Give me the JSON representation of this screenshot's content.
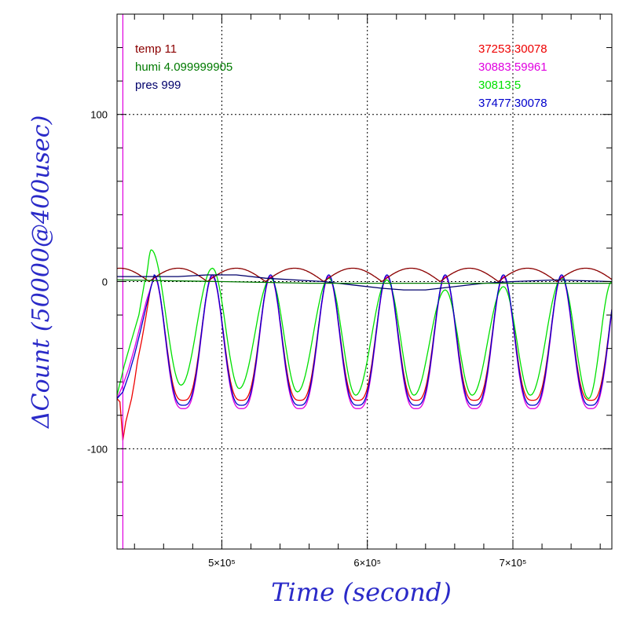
{
  "chart_data": {
    "type": "line",
    "xlabel": "Time (second)",
    "ylabel": "ΔCount (50000@400usec)",
    "xlim": [
      428000,
      768000
    ],
    "ylim": [
      -160,
      160
    ],
    "x_tick_values": [
      500000,
      600000,
      700000
    ],
    "x_tick_labels": [
      "5×10⁵",
      "6×10⁵",
      "7×10⁵"
    ],
    "y_tick_values": [
      100,
      0,
      -100
    ],
    "y_tick_labels": [
      "100",
      "0",
      "-100"
    ],
    "grid": true,
    "legend_left": [
      {
        "label": "temp 11",
        "color": "#8b0000"
      },
      {
        "label": "humi 4.099999905",
        "color": "#007a00"
      },
      {
        "label": "pres 999",
        "color": "#00006b"
      }
    ],
    "legend_right": [
      {
        "label": "37253.30078",
        "color": "#ee0000"
      },
      {
        "label": "30883.59961",
        "color": "#e000e0"
      },
      {
        "label": "30813.5",
        "color": "#00e000"
      },
      {
        "label": "37477.30078",
        "color": "#0000cc"
      }
    ],
    "series": [
      {
        "name": "37253.30078",
        "color": "#ee0000",
        "oscillation": {
          "peak": 3,
          "trough": -71,
          "period": 40000,
          "first_peak_x": 453500
        },
        "start": [
          [
            428000,
            -70
          ],
          [
            430000,
            -72
          ],
          [
            432000,
            -95
          ],
          [
            434000,
            -84
          ],
          [
            436000,
            -77
          ],
          [
            438000,
            -70
          ],
          [
            440000,
            -60
          ],
          [
            442000,
            -48
          ],
          [
            445000,
            -35
          ],
          [
            448000,
            -20
          ],
          [
            451000,
            -4
          ]
        ]
      },
      {
        "name": "30883.59961",
        "color": "#e000e0",
        "oscillation": {
          "peak": 3,
          "trough": -76,
          "period": 40000,
          "first_peak_x": 453500
        },
        "start": [
          [
            428000,
            -70
          ],
          [
            432000,
            -62
          ],
          [
            436000,
            -52
          ],
          [
            440000,
            -40
          ],
          [
            444000,
            -26
          ],
          [
            448000,
            -12
          ]
        ],
        "spike_x": 432000,
        "spike_range": [
          -160,
          160
        ]
      },
      {
        "name": "30813.5",
        "color": "#00e000",
        "peaks": [
          [
            451500,
            19
          ],
          [
            493500,
            8
          ],
          [
            533500,
            2
          ],
          [
            573500,
            2
          ],
          [
            613500,
            1
          ],
          [
            653500,
            -5
          ],
          [
            693500,
            -3
          ],
          [
            733500,
            2
          ]
        ],
        "troughs": [
          [
            472000,
            -62
          ],
          [
            512000,
            -64
          ],
          [
            552000,
            -66
          ],
          [
            592000,
            -68
          ],
          [
            632000,
            -68
          ],
          [
            672000,
            -68
          ],
          [
            712000,
            -68
          ],
          [
            752000,
            -70
          ]
        ],
        "start": [
          [
            428000,
            -68
          ],
          [
            433000,
            -50
          ],
          [
            438000,
            -35
          ],
          [
            443000,
            -20
          ],
          [
            447000,
            0
          ]
        ]
      },
      {
        "name": "37477.30078",
        "color": "#0000cc",
        "oscillation": {
          "peak": 4,
          "trough": -74,
          "period": 40000,
          "first_peak_x": 453500
        },
        "start": [
          [
            428000,
            -70
          ],
          [
            432000,
            -66
          ],
          [
            436000,
            -56
          ],
          [
            440000,
            -44
          ],
          [
            444000,
            -30
          ],
          [
            448000,
            -15
          ]
        ]
      },
      {
        "name": "temp 11",
        "color": "#8b0000",
        "wave": {
          "max": 8,
          "min": 0,
          "period": 40000,
          "first_max_x": 430000
        }
      },
      {
        "name": "pres 999",
        "color": "#00006b",
        "points": [
          [
            428000,
            3
          ],
          [
            450000,
            3
          ],
          [
            470000,
            3
          ],
          [
            490000,
            4
          ],
          [
            510000,
            4
          ],
          [
            530000,
            2
          ],
          [
            550000,
            1
          ],
          [
            570000,
            0
          ],
          [
            590000,
            -2
          ],
          [
            610000,
            -4
          ],
          [
            625000,
            -5
          ],
          [
            640000,
            -5
          ],
          [
            660000,
            -3
          ],
          [
            680000,
            -1
          ],
          [
            700000,
            0
          ],
          [
            730000,
            1
          ],
          [
            768000,
            0
          ]
        ]
      },
      {
        "name": "humi 4.099999905",
        "color": "#007a00",
        "points": [
          [
            428000,
            1
          ],
          [
            500000,
            0
          ],
          [
            560000,
            -1
          ],
          [
            620000,
            -1
          ],
          [
            680000,
            -1
          ],
          [
            768000,
            -1
          ]
        ]
      }
    ]
  }
}
